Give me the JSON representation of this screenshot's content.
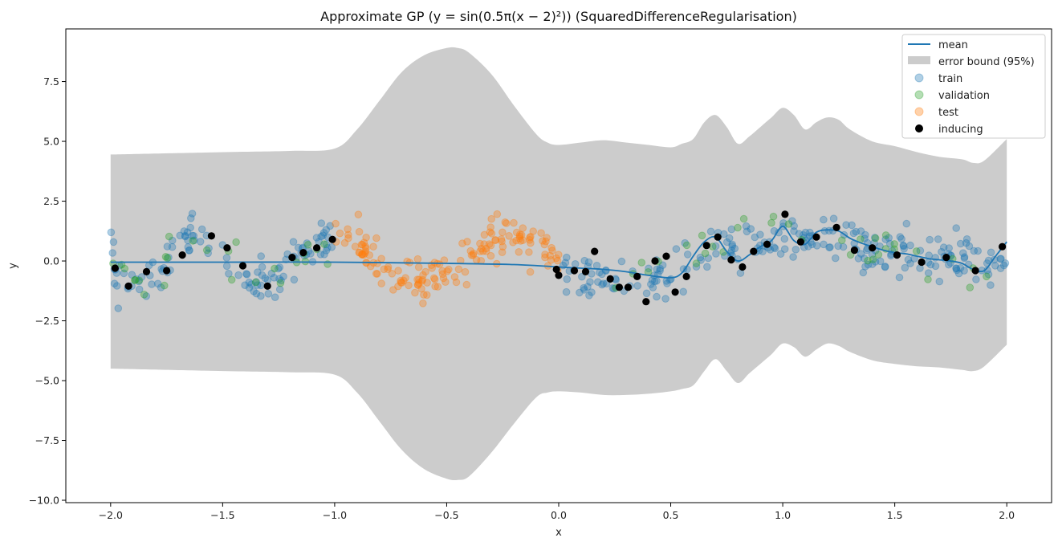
{
  "chart_data": {
    "type": "scatter",
    "title": "Approximate GP (y = sin(0.5π(x − 2)²)) (SquaredDifferenceRegularisation)",
    "xlabel": "x",
    "ylabel": "y",
    "xlim": [
      -2.2,
      2.2
    ],
    "ylim": [
      -10.1,
      9.7
    ],
    "x_ticks": [
      -2.0,
      -1.5,
      -1.0,
      -0.5,
      0.0,
      0.5,
      1.0,
      1.5,
      2.0
    ],
    "x_tick_labels": [
      "−2.0",
      "−1.5",
      "−1.0",
      "−0.5",
      "0.0",
      "0.5",
      "1.0",
      "1.5",
      "2.0"
    ],
    "y_ticks": [
      -10.0,
      -7.5,
      -5.0,
      -2.5,
      0.0,
      2.5,
      5.0,
      7.5
    ],
    "y_tick_labels": [
      "−10.0",
      "−7.5",
      "−5.0",
      "−2.5",
      "0.0",
      "2.5",
      "5.0",
      "7.5"
    ],
    "grid": false,
    "legend_placement": "top-right",
    "legend": [
      {
        "label": "mean",
        "kind": "line",
        "color": "#1f77b4"
      },
      {
        "label": "error bound (95%)",
        "kind": "band",
        "color": "#cccccc"
      },
      {
        "label": "train",
        "kind": "marker",
        "color": "#1f77b4",
        "alpha": 0.35
      },
      {
        "label": "validation",
        "kind": "marker",
        "color": "#2ca02c",
        "alpha": 0.35
      },
      {
        "label": "test",
        "kind": "marker",
        "color": "#ff7f0e",
        "alpha": 0.35
      },
      {
        "label": "inducing",
        "kind": "marker",
        "color": "#000000",
        "alpha": 1.0
      }
    ],
    "mean": {
      "x": [
        -2.0,
        -1.5,
        -1.0,
        -0.5,
        -0.2,
        0.0,
        0.1,
        0.2,
        0.3,
        0.4,
        0.5,
        0.55,
        0.6,
        0.65,
        0.7,
        0.75,
        0.8,
        0.85,
        0.9,
        0.95,
        1.0,
        1.05,
        1.1,
        1.15,
        1.2,
        1.25,
        1.3,
        1.35,
        1.4,
        1.45,
        1.5,
        1.55,
        1.6,
        1.65,
        1.7,
        1.75,
        1.8,
        1.85,
        1.9,
        1.95,
        2.0
      ],
      "y": [
        -0.05,
        -0.05,
        -0.05,
        -0.1,
        -0.15,
        -0.25,
        -0.3,
        -0.35,
        -0.45,
        -0.6,
        -0.7,
        -0.5,
        0.2,
        0.8,
        1.0,
        0.4,
        0.0,
        0.25,
        0.6,
        0.85,
        1.45,
        0.85,
        0.7,
        1.2,
        1.3,
        1.25,
        0.95,
        0.75,
        0.6,
        0.45,
        0.35,
        0.3,
        0.2,
        0.1,
        0.05,
        0.0,
        -0.1,
        -0.35,
        -0.4,
        0.2,
        0.8
      ]
    },
    "error_bound": {
      "x": [
        -2.0,
        -1.5,
        -1.2,
        -1.0,
        -0.9,
        -0.8,
        -0.7,
        -0.6,
        -0.5,
        -0.45,
        -0.4,
        -0.3,
        -0.2,
        -0.1,
        -0.05,
        0.0,
        0.1,
        0.2,
        0.3,
        0.4,
        0.5,
        0.55,
        0.6,
        0.65,
        0.7,
        0.75,
        0.8,
        0.85,
        0.9,
        0.95,
        1.0,
        1.05,
        1.1,
        1.15,
        1.2,
        1.25,
        1.3,
        1.4,
        1.5,
        1.6,
        1.7,
        1.8,
        1.85,
        1.9,
        2.0
      ],
      "upper": [
        4.45,
        4.55,
        4.6,
        4.7,
        5.5,
        6.7,
        7.9,
        8.6,
        8.9,
        8.9,
        8.7,
        7.8,
        6.5,
        5.3,
        4.95,
        4.85,
        4.95,
        5.05,
        4.95,
        4.85,
        4.75,
        4.9,
        5.1,
        5.8,
        6.1,
        5.6,
        4.9,
        5.2,
        5.6,
        6.0,
        6.4,
        6.1,
        5.5,
        5.8,
        6.0,
        5.9,
        5.5,
        5.0,
        4.8,
        4.55,
        4.35,
        4.25,
        4.1,
        4.2,
        5.1
      ],
      "lower": [
        -4.5,
        -4.6,
        -4.65,
        -4.75,
        -5.5,
        -6.7,
        -7.9,
        -8.7,
        -9.1,
        -9.15,
        -9.0,
        -8.0,
        -6.8,
        -5.7,
        -5.5,
        -5.45,
        -5.5,
        -5.6,
        -5.6,
        -5.55,
        -5.45,
        -5.35,
        -5.2,
        -4.6,
        -4.1,
        -4.6,
        -5.1,
        -4.7,
        -4.3,
        -3.9,
        -3.45,
        -3.6,
        -4.0,
        -3.7,
        -3.45,
        -3.55,
        -3.8,
        -4.15,
        -4.3,
        -4.4,
        -4.45,
        -4.55,
        -4.6,
        -4.4,
        -3.5
      ]
    },
    "train_generator": {
      "x_ranges": [
        [
          -2.0,
          -1.0
        ],
        [
          0.0,
          2.0
        ]
      ],
      "count": 360,
      "color": "#1f77b4"
    },
    "validation_generator": {
      "x_ranges": [
        [
          -2.0,
          -1.0
        ],
        [
          0.0,
          2.0
        ]
      ],
      "count": 60,
      "color": "#2ca02c"
    },
    "test_generator": {
      "x_ranges": [
        [
          -1.0,
          0.0
        ]
      ],
      "count": 160,
      "color": "#ff7f0e"
    },
    "inducing": {
      "x": [
        -1.98,
        -1.92,
        -1.84,
        -1.75,
        -1.68,
        -1.55,
        -1.48,
        -1.41,
        -1.3,
        -1.19,
        -1.14,
        -1.08,
        -1.01,
        -0.01,
        0.0,
        0.07,
        0.12,
        0.16,
        0.23,
        0.27,
        0.31,
        0.35,
        0.39,
        0.43,
        0.48,
        0.52,
        0.57,
        0.66,
        0.71,
        0.77,
        0.82,
        0.87,
        0.93,
        1.01,
        1.08,
        1.15,
        1.24,
        1.32,
        1.4,
        1.51,
        1.62,
        1.73,
        1.86,
        1.98
      ],
      "y": [
        -0.3,
        -1.05,
        -0.45,
        -0.4,
        0.25,
        1.05,
        0.55,
        -0.2,
        -1.05,
        0.15,
        0.35,
        0.55,
        0.9,
        -0.35,
        -0.6,
        -0.4,
        -0.45,
        0.4,
        -0.75,
        -1.1,
        -1.1,
        -0.65,
        -1.7,
        0.0,
        0.2,
        -1.3,
        -0.65,
        0.65,
        1.0,
        0.05,
        -0.25,
        0.4,
        0.7,
        1.95,
        0.8,
        1.0,
        1.4,
        0.45,
        0.55,
        0.25,
        -0.05,
        0.15,
        -0.4,
        0.6
      ]
    }
  }
}
